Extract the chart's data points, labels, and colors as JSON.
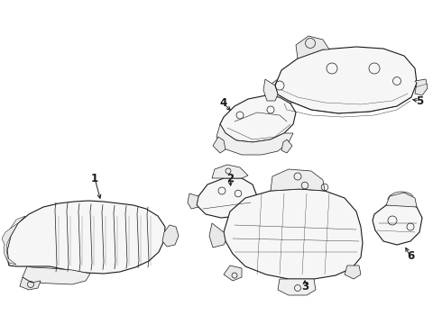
{
  "background": "#ffffff",
  "lc": "#1a1a1a",
  "lw": 0.8,
  "ld": 0.5,
  "fig_w": 4.9,
  "fig_h": 3.6,
  "dpi": 100
}
